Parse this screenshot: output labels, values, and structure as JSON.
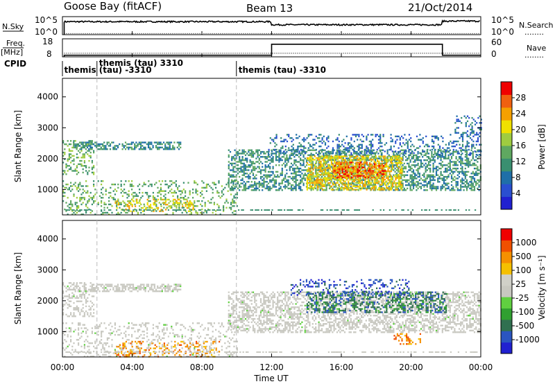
{
  "header": {
    "station": "Goose Bay (fitACF)",
    "beam": "Beam 13",
    "date": "21/Oct/2014"
  },
  "side_labels": {
    "nsky": "N.Sky",
    "nsearch": "N.Search",
    "freq": "Freq.",
    "freq_unit": "[MHz]",
    "nave": "Nave",
    "cpid": "CPID",
    "ellipsis": "........"
  },
  "nsky_axis": {
    "top": "10^5",
    "bottom": "10^0"
  },
  "nsearch_axis": {
    "top": "10^5",
    "bottom": "10^0"
  },
  "freq_axis": {
    "top": "18",
    "bottom": "8"
  },
  "nave_axis": {
    "top": "60",
    "bottom": "0"
  },
  "cpid_labels": [
    {
      "text": "themis",
      "t": 0.1,
      "row": "low"
    },
    {
      "text": "themis (tau) 3310",
      "t": 2.1,
      "row": "high"
    },
    {
      "text": "(tau) -3310",
      "t": 2.1,
      "row": "low"
    },
    {
      "text": "themis (tau) -3310",
      "t": 10.1,
      "row": "low"
    }
  ],
  "colors": {
    "power_scale": [
      "#2020d0",
      "#2a4fd0",
      "#1f6fa8",
      "#3a8f70",
      "#5fa860",
      "#9fcc40",
      "#f0e000",
      "#f5a000",
      "#f06010",
      "#f00000"
    ],
    "velocity_scale": [
      "#2020d0",
      "#2a55c0",
      "#307050",
      "#30a030",
      "#60d040",
      "#c8c8c0",
      "#d0d0c8",
      "#f5c000",
      "#f59000",
      "#f05000",
      "#f00000"
    ]
  },
  "power_colorbar": {
    "label": "Power [dB]",
    "ticks": [
      "4",
      "8",
      "12",
      "16",
      "20",
      "24",
      "28"
    ]
  },
  "velocity_colorbar": {
    "label": "Velocity [m s⁻¹]",
    "ticks": [
      "-1000",
      "-500",
      "-100",
      "-25",
      "25",
      "100",
      "500",
      "1000"
    ]
  },
  "chart_data": [
    {
      "type": "line",
      "name": "N.Sky / N.Search",
      "x": [
        0,
        0.1,
        12,
        21.8,
        24
      ],
      "noise_level": [
        0.6,
        0.72,
        0.72,
        0.55,
        0.75
      ],
      "noise_level_note": "N.Sky (step near 12:00, 22:00), fraction of axis"
    },
    {
      "type": "line",
      "name": "Freq / Nave",
      "freq_mhz": [
        {
          "t0": 0,
          "t1": 12,
          "freq": 8.9
        },
        {
          "t0": 12,
          "t1": 21.8,
          "freq": 15.0
        },
        {
          "t0": 21.8,
          "t1": 24,
          "freq": 8.9
        }
      ],
      "nave": [
        {
          "t0": 0,
          "t1": 24,
          "nave": 12
        }
      ]
    },
    {
      "type": "heatmap",
      "name": "Power",
      "xlabel": "Time UT",
      "ylabel": "Slant Range [km]",
      "xlim": [
        0,
        24
      ],
      "ylim": [
        180,
        4600
      ],
      "xticks": [
        "00:00",
        "04:00",
        "08:00",
        "12:00",
        "16:00",
        "20:00",
        "00:00"
      ],
      "yticks": [
        1000,
        2000,
        3000,
        4000
      ],
      "regions": [
        {
          "t0": 0.0,
          "t1": 1.8,
          "r0": 1500,
          "r1": 2600,
          "level": 4,
          "density": 0.35
        },
        {
          "t0": 0.6,
          "t1": 6.8,
          "r0": 2300,
          "r1": 2550,
          "level": 3,
          "density": 0.55
        },
        {
          "t0": 0.0,
          "t1": 10.0,
          "r0": 180,
          "r1": 1300,
          "level": 4,
          "density": 0.22
        },
        {
          "t0": 3.0,
          "t1": 7.5,
          "r0": 300,
          "r1": 700,
          "level": 6,
          "density": 0.3
        },
        {
          "t0": 9.5,
          "t1": 24.0,
          "r0": 1000,
          "r1": 2300,
          "level": 3,
          "density": 0.5
        },
        {
          "t0": 14.0,
          "t1": 19.5,
          "r0": 1000,
          "r1": 2100,
          "level": 6,
          "density": 0.6
        },
        {
          "t0": 15.5,
          "t1": 18.5,
          "r0": 1400,
          "r1": 1900,
          "level": 8,
          "density": 0.55
        },
        {
          "t0": 11.8,
          "t1": 24.0,
          "r0": 2100,
          "r1": 2800,
          "level": 2,
          "density": 0.25
        },
        {
          "t0": 22.5,
          "t1": 24.0,
          "r0": 2800,
          "r1": 3400,
          "level": 2,
          "density": 0.3
        }
      ]
    },
    {
      "type": "heatmap",
      "name": "Velocity",
      "xlabel": "Time UT",
      "ylabel": "Slant Range [km]",
      "xlim": [
        0,
        24
      ],
      "ylim": [
        180,
        4600
      ],
      "xticks": [
        "00:00",
        "04:00",
        "08:00",
        "12:00",
        "16:00",
        "20:00",
        "00:00"
      ],
      "yticks": [
        1000,
        2000,
        3000,
        4000
      ],
      "regions": [
        {
          "t0": 0.0,
          "t1": 1.8,
          "r0": 1500,
          "r1": 2600,
          "level": 5,
          "density": 0.35
        },
        {
          "t0": 0.6,
          "t1": 6.8,
          "r0": 2300,
          "r1": 2550,
          "level": 5,
          "density": 0.55
        },
        {
          "t0": 0.0,
          "t1": 10.0,
          "r0": 180,
          "r1": 1300,
          "level": 5,
          "density": 0.22
        },
        {
          "t0": 3.0,
          "t1": 9.0,
          "r0": 200,
          "r1": 700,
          "level": 8,
          "density": 0.25
        },
        {
          "t0": 9.5,
          "t1": 24.0,
          "r0": 1000,
          "r1": 2300,
          "level": 5,
          "density": 0.5
        },
        {
          "t0": 14.0,
          "t1": 22.0,
          "r0": 1600,
          "r1": 2300,
          "level": 2,
          "density": 0.45
        },
        {
          "t0": 13.0,
          "t1": 20.0,
          "r0": 2200,
          "r1": 2700,
          "level": 1,
          "density": 0.25
        },
        {
          "t0": 19.0,
          "t1": 20.5,
          "r0": 600,
          "r1": 950,
          "level": 8,
          "density": 0.35
        }
      ]
    }
  ]
}
